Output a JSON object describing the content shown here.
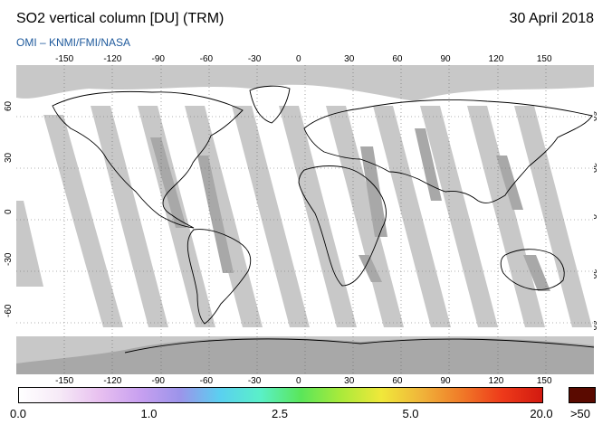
{
  "header": {
    "title": "SO2 vertical column [DU] (TRM)",
    "date": "30 April 2018",
    "subtitle": "OMI  –  KNMI/FMI/NASA"
  },
  "map": {
    "projection": "equirectangular",
    "lon_range": [
      -180,
      180
    ],
    "lat_range": [
      -90,
      90
    ],
    "lon_ticks": [
      "-150",
      "-120",
      "-90",
      "-60",
      "-30",
      "0",
      "30",
      "60",
      "90",
      "120",
      "150"
    ],
    "lat_ticks": [
      "60",
      "30",
      "0",
      "-30",
      "-60"
    ],
    "colors": {
      "no_data": "#c8c8c8",
      "land_mask": "#a8a8a8",
      "coast": "#000000",
      "grid": "#666666"
    }
  },
  "colorbar": {
    "labels": [
      "0.0",
      "1.0",
      "2.5",
      "5.0",
      "20.0"
    ],
    "over_label": ">50",
    "over_color": "#5a0a00",
    "stops": [
      "#ffffff",
      "#f6eaf7",
      "#e8c0f0",
      "#c8a0f0",
      "#9c94ea",
      "#5ad0f0",
      "#5af0c8",
      "#5ae65a",
      "#aaea3a",
      "#f0e83a",
      "#f0b43a",
      "#f07a28",
      "#ee3a1a",
      "#d21a10"
    ]
  }
}
